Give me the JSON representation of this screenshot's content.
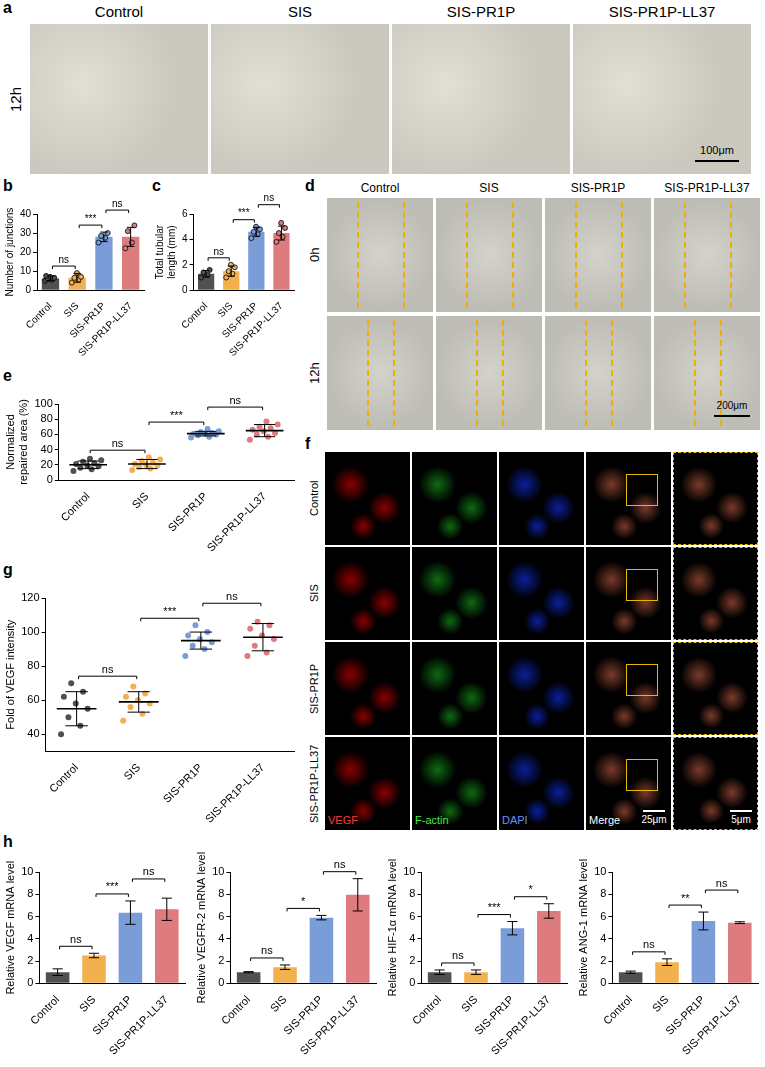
{
  "images": [
    {
      "panel": "a",
      "columns": [
        "Control",
        "SIS",
        "SIS-PR1P",
        "SIS-PR1P-LL37"
      ],
      "rows": [
        "12h"
      ],
      "scale_bar": "100μm"
    },
    {
      "panel": "d",
      "columns": [
        "Control",
        "SIS",
        "SIS-PR1P",
        "SIS-PR1P-LL37"
      ],
      "rows": [
        "0h",
        "12h"
      ],
      "scale_bar": "200μm"
    },
    {
      "panel": "f",
      "rows": [
        "Control",
        "SIS",
        "SIS-PR1P",
        "SIS-PR1P-LL37"
      ],
      "channels": [
        "VEGF",
        "F-actin",
        "DAPI",
        "Merge"
      ],
      "scale_bars": [
        "25μm",
        "5μm"
      ]
    }
  ],
  "chart_data": [
    {
      "panel": "b",
      "type": "bar",
      "categories": [
        "Control",
        "SIS",
        "SIS-PR1P",
        "SIS-PR1P-LL37"
      ],
      "y_label": "Number of junctions",
      "values": [
        6.2,
        6.5,
        28,
        28
      ],
      "errors": [
        1.2,
        2.3,
        2.5,
        5
      ],
      "points": [
        [
          5,
          5.5,
          6,
          6.5,
          7,
          7.5
        ],
        [
          4,
          5.5,
          6.5,
          7,
          9
        ],
        [
          25,
          27.5,
          28.5,
          30
        ],
        [
          22,
          25,
          31,
          34
        ]
      ],
      "colors": [
        "#505050",
        "#f2b04f",
        "#7a9cd8",
        "#de7b7f"
      ],
      "ylim": [
        0,
        40
      ],
      "yticks": [
        0,
        10,
        20,
        30,
        40
      ],
      "comparisons": [
        {
          "pair": [
            "Control",
            "SIS"
          ],
          "label": "ns"
        },
        {
          "pair": [
            "SIS",
            "SIS-PR1P"
          ],
          "label": "***"
        },
        {
          "pair": [
            "SIS-PR1P",
            "SIS-PR1P-LL37"
          ],
          "label": "ns"
        }
      ]
    },
    {
      "panel": "c",
      "type": "bar",
      "categories": [
        "Control",
        "SIS",
        "SIS-PR1P",
        "SIS-PR1P-LL37"
      ],
      "y_label": "Total tubular length (mm)",
      "values": [
        1.3,
        1.5,
        4.6,
        4.5
      ],
      "errors": [
        0.25,
        0.4,
        0.35,
        0.55
      ],
      "points": [
        [
          1.0,
          1.2,
          1.4,
          1.6
        ],
        [
          1.0,
          1.3,
          1.5,
          1.8,
          2.0
        ],
        [
          4.1,
          4.4,
          4.6,
          4.8,
          5.0
        ],
        [
          3.8,
          4.2,
          4.5,
          4.9,
          5.3
        ]
      ],
      "colors": [
        "#505050",
        "#f2b04f",
        "#7a9cd8",
        "#de7b7f"
      ],
      "ylim": [
        0,
        6
      ],
      "yticks": [
        0,
        2,
        4,
        6
      ],
      "comparisons": [
        {
          "pair": [
            "Control",
            "SIS"
          ],
          "label": "ns"
        },
        {
          "pair": [
            "SIS",
            "SIS-PR1P"
          ],
          "label": "***"
        },
        {
          "pair": [
            "SIS-PR1P",
            "SIS-PR1P-LL37"
          ],
          "label": "ns"
        }
      ]
    },
    {
      "panel": "e",
      "type": "dot",
      "categories": [
        "Control",
        "SIS",
        "SIS-PR1P",
        "SIS-PR1P-LL37"
      ],
      "y_label": "Normalized repaired area (%)",
      "values": [
        20,
        21,
        61,
        65
      ],
      "errors": [
        5,
        6,
        3,
        8
      ],
      "points": [
        [
          12,
          14,
          16,
          18,
          19,
          21,
          22,
          24,
          26,
          28
        ],
        [
          13,
          15,
          17,
          19,
          20,
          21,
          23,
          25,
          27,
          30
        ],
        [
          56,
          57,
          59,
          60,
          61,
          61,
          62,
          63,
          64,
          67
        ],
        [
          53,
          57,
          60,
          62,
          64,
          66,
          68,
          70,
          73,
          77
        ]
      ],
      "colors": [
        "#505050",
        "#f2b04f",
        "#7a9cd8",
        "#de7b7f"
      ],
      "ylim": [
        0,
        100
      ],
      "yticks": [
        0,
        20,
        40,
        60,
        80,
        100
      ],
      "comparisons": [
        {
          "pair": [
            "Control",
            "SIS"
          ],
          "label": "ns"
        },
        {
          "pair": [
            "SIS",
            "SIS-PR1P"
          ],
          "label": "***"
        },
        {
          "pair": [
            "SIS-PR1P",
            "SIS-PR1P-LL37"
          ],
          "label": "ns"
        }
      ]
    },
    {
      "panel": "g",
      "type": "dot",
      "categories": [
        "Control",
        "SIS",
        "SIS-PR1P",
        "SIS-PR1P-LL37"
      ],
      "y_label": "Fold of VEGF intensity",
      "values": [
        55,
        59,
        95,
        97
      ],
      "errors": [
        10,
        6,
        5,
        8
      ],
      "points": [
        [
          40,
          45,
          50,
          55,
          58,
          62,
          65,
          70
        ],
        [
          48,
          52,
          56,
          58,
          60,
          62,
          64,
          68
        ],
        [
          86,
          90,
          92,
          94,
          96,
          98,
          100,
          104
        ],
        [
          86,
          88,
          92,
          96,
          98,
          102,
          104,
          106
        ]
      ],
      "colors": [
        "#505050",
        "#f2b04f",
        "#7a9cd8",
        "#de7b7f"
      ],
      "ylim": [
        30,
        120
      ],
      "yticks": [
        40,
        60,
        80,
        100,
        120
      ],
      "comparisons": [
        {
          "pair": [
            "Control",
            "SIS"
          ],
          "label": "ns"
        },
        {
          "pair": [
            "SIS",
            "SIS-PR1P"
          ],
          "label": "***"
        },
        {
          "pair": [
            "SIS-PR1P",
            "SIS-PR1P-LL37"
          ],
          "label": "ns"
        }
      ]
    },
    {
      "panel": "h",
      "type": "bar",
      "categories": [
        "Control",
        "SIS",
        "SIS-PR1P",
        "SIS-PR1P-LL37"
      ],
      "y_label": "Relative VEGF mRNA level",
      "values": [
        1.0,
        2.5,
        6.35,
        6.65
      ],
      "errors": [
        0.3,
        0.2,
        1.05,
        1.0
      ],
      "colors": [
        "#505050",
        "#f2b04f",
        "#7a9cd8",
        "#de7b7f"
      ],
      "ylim": [
        0,
        10
      ],
      "yticks": [
        0,
        2,
        4,
        6,
        8,
        10
      ],
      "comparisons": [
        {
          "pair": [
            "Control",
            "SIS"
          ],
          "label": "ns"
        },
        {
          "pair": [
            "SIS",
            "SIS-PR1P"
          ],
          "label": "***"
        },
        {
          "pair": [
            "SIS-PR1P",
            "SIS-PR1P-LL37"
          ],
          "label": "ns"
        }
      ]
    },
    {
      "type": "bar",
      "categories": [
        "Control",
        "SIS",
        "SIS-PR1P",
        "SIS-PR1P-LL37"
      ],
      "y_label": "Relative VEGFR-2 mRNA level",
      "values": [
        1.0,
        1.45,
        5.9,
        7.95
      ],
      "errors": [
        0.05,
        0.2,
        0.2,
        1.45
      ],
      "colors": [
        "#505050",
        "#f2b04f",
        "#7a9cd8",
        "#de7b7f"
      ],
      "ylim": [
        0,
        10
      ],
      "yticks": [
        0,
        2,
        4,
        6,
        8,
        10
      ],
      "comparisons": [
        {
          "pair": [
            "Control",
            "SIS"
          ],
          "label": "ns"
        },
        {
          "pair": [
            "SIS",
            "SIS-PR1P"
          ],
          "label": "*"
        },
        {
          "pair": [
            "SIS-PR1P",
            "SIS-PR1P-LL37"
          ],
          "label": "ns"
        }
      ]
    },
    {
      "type": "bar",
      "categories": [
        "Control",
        "SIS",
        "SIS-PR1P",
        "SIS-PR1P-LL37"
      ],
      "y_label": "Relative HIF-1α mRNA level",
      "values": [
        1.0,
        1.0,
        4.95,
        6.5
      ],
      "errors": [
        0.2,
        0.2,
        0.6,
        0.65
      ],
      "colors": [
        "#505050",
        "#f2b04f",
        "#7a9cd8",
        "#de7b7f"
      ],
      "ylim": [
        0,
        10
      ],
      "yticks": [
        0,
        2,
        4,
        6,
        8,
        10
      ],
      "comparisons": [
        {
          "pair": [
            "Control",
            "SIS"
          ],
          "label": "ns"
        },
        {
          "pair": [
            "SIS",
            "SIS-PR1P"
          ],
          "label": "***"
        },
        {
          "pair": [
            "SIS-PR1P",
            "SIS-PR1P-LL37"
          ],
          "label": "*"
        }
      ]
    },
    {
      "type": "bar",
      "categories": [
        "Control",
        "SIS",
        "SIS-PR1P",
        "SIS-PR1P-LL37"
      ],
      "y_label": "Relative ANG-1 mRNA level",
      "values": [
        1.0,
        1.9,
        5.6,
        5.45
      ],
      "errors": [
        0.1,
        0.3,
        0.8,
        0.08
      ],
      "colors": [
        "#505050",
        "#f2b04f",
        "#7a9cd8",
        "#de7b7f"
      ],
      "ylim": [
        0,
        10
      ],
      "yticks": [
        0,
        2,
        4,
        6,
        8,
        10
      ],
      "comparisons": [
        {
          "pair": [
            "Control",
            "SIS"
          ],
          "label": "ns"
        },
        {
          "pair": [
            "SIS",
            "SIS-PR1P"
          ],
          "label": "**"
        },
        {
          "pair": [
            "SIS-PR1P",
            "SIS-PR1P-LL37"
          ],
          "label": "ns"
        }
      ]
    }
  ]
}
